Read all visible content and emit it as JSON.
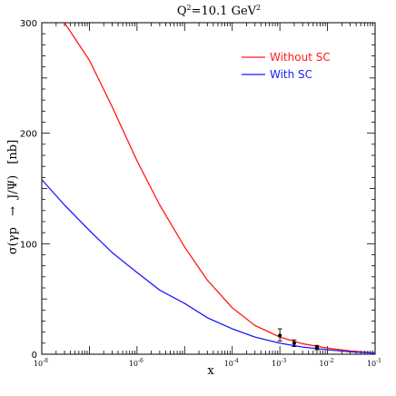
{
  "chart_data": {
    "type": "line",
    "title_main": "Q",
    "title_sup": "2",
    "title_rest": "=10.1 GeV",
    "title_sup2": "2",
    "xlabel": "x",
    "ylabel_parts": [
      "σ(γp",
      "→",
      "J/Ψ)",
      "[nb]"
    ],
    "x_scale": "log",
    "xlim": [
      1e-08,
      0.1
    ],
    "ylim": [
      0,
      300
    ],
    "x_ticks": [
      {
        "value": 1e-08,
        "base": "10",
        "exp": "-8"
      },
      {
        "value": 1e-06,
        "base": "10",
        "exp": "-6"
      },
      {
        "value": 0.0001,
        "base": "10",
        "exp": "-4"
      },
      {
        "value": 0.001,
        "base": "10",
        "exp": "-3"
      },
      {
        "value": 0.01,
        "base": "10",
        "exp": "-2"
      },
      {
        "value": 0.1,
        "base": "10",
        "exp": "-1"
      }
    ],
    "y_ticks": [
      0,
      100,
      200,
      300
    ],
    "legend": {
      "placement": "top-right"
    },
    "series": [
      {
        "name": "Without SC",
        "color": "#ff1a1a",
        "x": [
          3e-08,
          1e-07,
          3e-07,
          1e-06,
          3e-06,
          1e-05,
          3e-05,
          0.0001,
          0.0003,
          0.001,
          0.003,
          0.01,
          0.03,
          0.1
        ],
        "y": [
          300,
          266,
          224,
          175,
          135,
          97,
          67,
          42,
          26,
          15.5,
          9.5,
          5.5,
          3,
          1.2
        ]
      },
      {
        "name": "With SC",
        "color": "#1a1aff",
        "x": [
          1e-08,
          3e-08,
          1e-07,
          3e-07,
          1e-06,
          3e-06,
          1e-05,
          3e-05,
          0.0001,
          0.0003,
          0.001,
          0.003,
          0.01,
          0.03,
          0.1
        ],
        "y": [
          158,
          135,
          112,
          92,
          74,
          58,
          46,
          33,
          23,
          15.5,
          10,
          6.5,
          4,
          2.2,
          1
        ]
      }
    ],
    "data_points": [
      {
        "x": 0.001,
        "y": 17,
        "err_low": 12,
        "err_high": 23
      },
      {
        "x": 0.002,
        "y": 10,
        "err_low": 7,
        "err_high": 13
      },
      {
        "x": 0.006,
        "y": 6,
        "err_low": 4,
        "err_high": 8
      }
    ]
  }
}
